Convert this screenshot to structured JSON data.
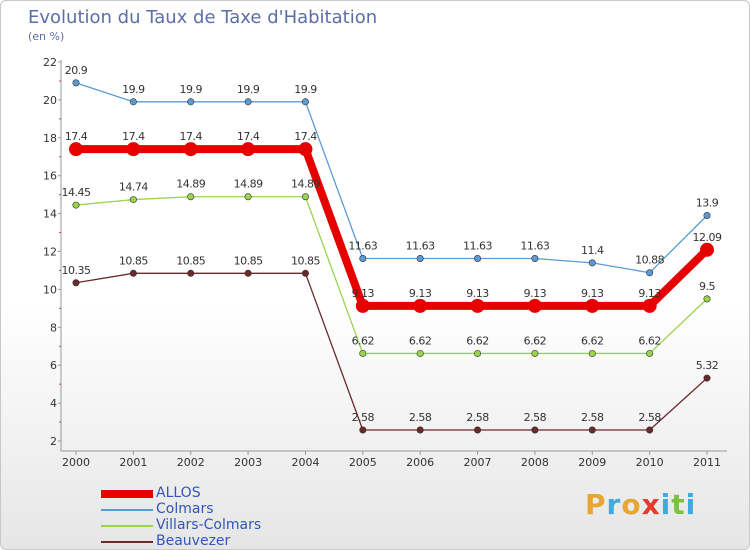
{
  "title": "Evolution du Taux de Taxe d'Habitation",
  "subtitle": "(en %)",
  "logo": {
    "text": "Proxiti",
    "colors": [
      "#e8a534",
      "#3fa9e0",
      "#e8a534",
      "#e23d2e",
      "#3fa9e0",
      "#7cc242",
      "#3fa9e0"
    ]
  },
  "chart_data": {
    "type": "line",
    "categories": [
      "2000",
      "2001",
      "2002",
      "2003",
      "2004",
      "2005",
      "2006",
      "2007",
      "2008",
      "2009",
      "2010",
      "2011"
    ],
    "ylim": [
      2,
      22
    ],
    "yticks": [
      2,
      4,
      6,
      8,
      10,
      12,
      14,
      16,
      18,
      20,
      22
    ],
    "grid": false,
    "legend_position": "bottom-left",
    "series": [
      {
        "name": "ALLOS",
        "color": "#e60000",
        "values": [
          17.4,
          17.4,
          17.4,
          17.4,
          17.4,
          9.13,
          9.13,
          9.13,
          9.13,
          9.13,
          9.13,
          12.09
        ],
        "labels": [
          "17.4",
          "17.4",
          "17.4",
          "17.4",
          "17.4",
          "9.13",
          "9.13",
          "9.13",
          "9.13",
          "9.13",
          "9.13",
          "12.09"
        ],
        "bold": true
      },
      {
        "name": "Colmars",
        "color": "#5b9bd5",
        "values": [
          20.9,
          19.9,
          19.9,
          19.9,
          19.9,
          11.63,
          11.63,
          11.63,
          11.63,
          11.4,
          10.88,
          13.9
        ],
        "labels": [
          "20.9",
          "19.9",
          "19.9",
          "19.9",
          "19.9",
          "11.63",
          "11.63",
          "11.63",
          "11.63",
          "11.4",
          "10.88",
          "13.9"
        ]
      },
      {
        "name": "Villars-Colmars",
        "color": "#9ad44a",
        "values": [
          14.45,
          14.74,
          14.89,
          14.89,
          14.89,
          6.62,
          6.62,
          6.62,
          6.62,
          6.62,
          6.62,
          9.5
        ],
        "labels": [
          "14.45",
          "14.74",
          "14.89",
          "14.89",
          "14.89",
          "6.62",
          "6.62",
          "6.62",
          "6.62",
          "6.62",
          "6.62",
          "9.5"
        ]
      },
      {
        "name": "Beauvezer",
        "color": "#6b2a2a",
        "values": [
          10.35,
          10.85,
          10.85,
          10.85,
          10.85,
          2.58,
          2.58,
          2.58,
          2.58,
          2.58,
          2.58,
          5.32
        ],
        "labels": [
          "10.35",
          "10.85",
          "10.85",
          "10.85",
          "10.85",
          "2.58",
          "2.58",
          "2.58",
          "2.58",
          "2.58",
          "2.58",
          "5.32"
        ]
      }
    ]
  }
}
